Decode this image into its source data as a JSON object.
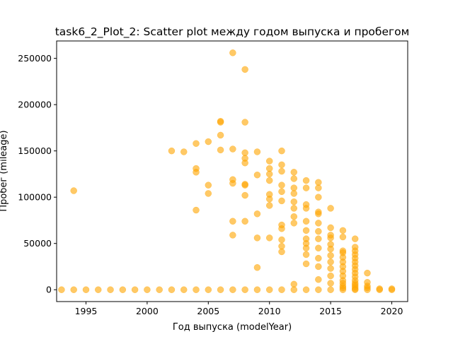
{
  "chart_data": {
    "type": "scatter",
    "title": "task6_2_Plot_2: Scatter plot между годом выпуска и пробегом",
    "xlabel": "Год выпуска (modelYear)",
    "ylabel": "Пробег (mileage)",
    "xlim": [
      1992.6,
      2021.3
    ],
    "ylim": [
      -12800,
      268800
    ],
    "xticks": [
      1995,
      2000,
      2005,
      2010,
      2015,
      2020
    ],
    "xtick_labels": [
      "1995",
      "2000",
      "2005",
      "2010",
      "2015",
      "2020"
    ],
    "yticks": [
      0,
      50000,
      100000,
      150000,
      200000,
      250000
    ],
    "ytick_labels": [
      "0",
      "50000",
      "100000",
      "150000",
      "200000",
      "250000"
    ],
    "marker_color": "#ffa500",
    "marker_alpha": 0.6,
    "grid": false,
    "series": [
      {
        "name": "mileage",
        "x": [
          1993,
          1994,
          1994,
          1995,
          1996,
          1997,
          1998,
          1999,
          2000,
          2001,
          2002,
          2002,
          2003,
          2003,
          2004,
          2004,
          2004,
          2004,
          2004,
          2005,
          2005,
          2005,
          2005,
          2006,
          2006,
          2006,
          2006,
          2006,
          2007,
          2007,
          2007,
          2007,
          2007,
          2007,
          2007,
          2008,
          2008,
          2008,
          2008,
          2008,
          2008,
          2008,
          2008,
          2008,
          2008,
          2009,
          2009,
          2009,
          2009,
          2009,
          2009,
          2010,
          2010,
          2010,
          2010,
          2010,
          2010,
          2010,
          2010,
          2010,
          2011,
          2011,
          2011,
          2011,
          2011,
          2011,
          2011,
          2011,
          2011,
          2011,
          2011,
          2011,
          2012,
          2012,
          2012,
          2012,
          2012,
          2012,
          2012,
          2012,
          2012,
          2012,
          2013,
          2013,
          2013,
          2013,
          2013,
          2013,
          2013,
          2013,
          2013,
          2013,
          2013,
          2013,
          2014,
          2014,
          2014,
          2014,
          2014,
          2014,
          2014,
          2014,
          2014,
          2014,
          2014,
          2014,
          2014,
          2015,
          2015,
          2015,
          2015,
          2015,
          2015,
          2015,
          2015,
          2015,
          2015,
          2015,
          2015,
          2016,
          2016,
          2016,
          2016,
          2016,
          2016,
          2016,
          2016,
          2016,
          2016,
          2016,
          2016,
          2016,
          2016,
          2017,
          2017,
          2017,
          2017,
          2017,
          2017,
          2017,
          2017,
          2017,
          2017,
          2017,
          2017,
          2017,
          2017,
          2017,
          2017,
          2018,
          2018,
          2018,
          2018,
          2018,
          2019,
          2019,
          2020,
          2020
        ],
        "y": [
          0,
          107000,
          0,
          0,
          0,
          0,
          0,
          0,
          0,
          0,
          150000,
          0,
          149000,
          0,
          158000,
          131000,
          127000,
          86000,
          0,
          160000,
          113000,
          104000,
          0,
          182000,
          181000,
          167000,
          151000,
          0,
          256000,
          152000,
          119000,
          115000,
          74000,
          59000,
          0,
          238000,
          181000,
          148000,
          142000,
          137000,
          114000,
          113000,
          102000,
          74000,
          0,
          149000,
          124000,
          82000,
          56000,
          24000,
          0,
          139000,
          131000,
          125000,
          118000,
          103000,
          98000,
          91000,
          56000,
          0,
          150000,
          135000,
          128000,
          113000,
          106000,
          96000,
          70000,
          66000,
          54000,
          47000,
          41000,
          0,
          127000,
          120000,
          110000,
          104000,
          95000,
          88000,
          79000,
          72000,
          6000,
          0,
          118000,
          110000,
          92000,
          88000,
          74000,
          64000,
          55000,
          50000,
          45000,
          38000,
          28000,
          0,
          116000,
          110000,
          100000,
          84000,
          82000,
          72000,
          63000,
          55000,
          45000,
          34000,
          25000,
          11000,
          0,
          88000,
          67000,
          59000,
          56000,
          49000,
          44000,
          37000,
          30000,
          23000,
          15000,
          7000,
          0,
          64000,
          57000,
          42000,
          40000,
          35000,
          30000,
          25000,
          20000,
          15000,
          10000,
          7000,
          4000,
          2000,
          0,
          55000,
          46000,
          42000,
          38000,
          34000,
          30000,
          26000,
          22000,
          18000,
          14000,
          10000,
          7000,
          5000,
          3000,
          1000,
          0,
          18000,
          8000,
          4000,
          2000,
          0,
          1000,
          0,
          1000,
          0
        ]
      }
    ]
  }
}
